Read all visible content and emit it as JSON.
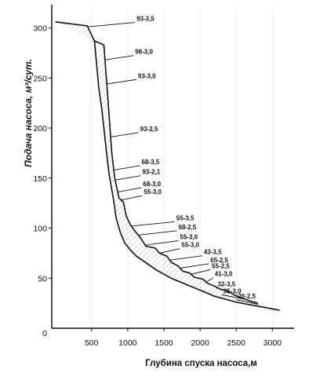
{
  "chart_data": {
    "type": "line",
    "title": "",
    "xlabel": "Глубина спуска насоса,м",
    "ylabel": "Подача насоса, м³/сут.",
    "xlim": [
      -50,
      3300
    ],
    "ylim": [
      0,
      320
    ],
    "x_ticks": [
      {
        "value": 500,
        "label": "500"
      },
      {
        "value": 1000,
        "label": "1000"
      },
      {
        "value": 1500,
        "label": "1500"
      },
      {
        "value": 2000,
        "label": "2000"
      },
      {
        "value": 2500,
        "label": "2500"
      },
      {
        "value": 3000,
        "label": "3000"
      }
    ],
    "y_ticks": [
      {
        "value": 50,
        "label": "50"
      },
      {
        "value": 100,
        "label": "100"
      },
      {
        "value": 150,
        "label": "150"
      },
      {
        "value": 200,
        "label": "200"
      },
      {
        "value": 250,
        "label": "250"
      },
      {
        "value": 300,
        "label": "300"
      }
    ],
    "origin_label": "0",
    "series": [
      {
        "points": [
          [
            0,
            306
          ],
          [
            440,
            302
          ],
          [
            540,
            287
          ],
          [
            670,
            283
          ],
          [
            720,
            235
          ],
          [
            780,
            175
          ],
          [
            820,
            150
          ],
          [
            880,
            130
          ],
          [
            940,
            126
          ],
          [
            980,
            112
          ],
          [
            1040,
            103
          ],
          [
            1100,
            97
          ],
          [
            1180,
            90
          ],
          [
            1250,
            82
          ],
          [
            1380,
            80
          ],
          [
            1440,
            75
          ],
          [
            1540,
            72
          ],
          [
            1600,
            66
          ],
          [
            1700,
            62
          ],
          [
            1760,
            57
          ],
          [
            1860,
            55
          ],
          [
            1920,
            51
          ],
          [
            2040,
            49
          ],
          [
            2100,
            45
          ],
          [
            2200,
            42
          ],
          [
            2280,
            39
          ],
          [
            2380,
            37
          ],
          [
            2480,
            33
          ],
          [
            2580,
            30
          ],
          [
            2700,
            27
          ],
          [
            2800,
            25
          ]
        ]
      },
      {
        "points": [
          [
            540,
            287
          ],
          [
            600,
            240
          ],
          [
            640,
            220
          ],
          [
            700,
            180
          ],
          [
            740,
            155
          ],
          [
            800,
            130
          ],
          [
            840,
            110
          ],
          [
            900,
            95
          ],
          [
            960,
            85
          ],
          [
            1040,
            78
          ],
          [
            1120,
            72
          ],
          [
            1200,
            68
          ],
          [
            1300,
            63
          ],
          [
            1400,
            58
          ],
          [
            1500,
            54
          ],
          [
            1600,
            50
          ],
          [
            1700,
            47
          ],
          [
            1800,
            44
          ],
          [
            1900,
            41
          ],
          [
            2000,
            38
          ],
          [
            2100,
            35
          ],
          [
            2200,
            32
          ],
          [
            2350,
            29
          ],
          [
            2500,
            26
          ],
          [
            2650,
            24
          ],
          [
            2800,
            22
          ],
          [
            3100,
            18
          ]
        ]
      }
    ],
    "annotations": [
      {
        "text": "93-3,5",
        "x": 1100,
        "y": 307
      },
      {
        "text": "98-3,0",
        "x": 1080,
        "y": 274
      },
      {
        "text": "93-3,0",
        "x": 1120,
        "y": 250
      },
      {
        "text": "93-2,5",
        "x": 1150,
        "y": 197
      },
      {
        "text": "68-3,5",
        "x": 1170,
        "y": 164
      },
      {
        "text": "93-2,1",
        "x": 1180,
        "y": 154
      },
      {
        "text": "68-3,0",
        "x": 1190,
        "y": 142
      },
      {
        "text": "55-3,0",
        "x": 1200,
        "y": 134
      },
      {
        "text": "55-3,5",
        "x": 1650,
        "y": 108
      },
      {
        "text": "68-2,5",
        "x": 1680,
        "y": 99
      },
      {
        "text": "55-3,0",
        "x": 1700,
        "y": 89
      },
      {
        "text": "55-3,0",
        "x": 1720,
        "y": 81
      },
      {
        "text": "43-3,5",
        "x": 2030,
        "y": 74
      },
      {
        "text": "65-2,5",
        "x": 2120,
        "y": 66
      },
      {
        "text": "55-2,5",
        "x": 2140,
        "y": 60
      },
      {
        "text": "41-3,0",
        "x": 2180,
        "y": 52
      },
      {
        "text": "32-3,5",
        "x": 2220,
        "y": 42
      },
      {
        "text": "35-3,0",
        "x": 2300,
        "y": 35
      },
      {
        "text": "20-2,5",
        "x": 2500,
        "y": 30
      }
    ]
  }
}
